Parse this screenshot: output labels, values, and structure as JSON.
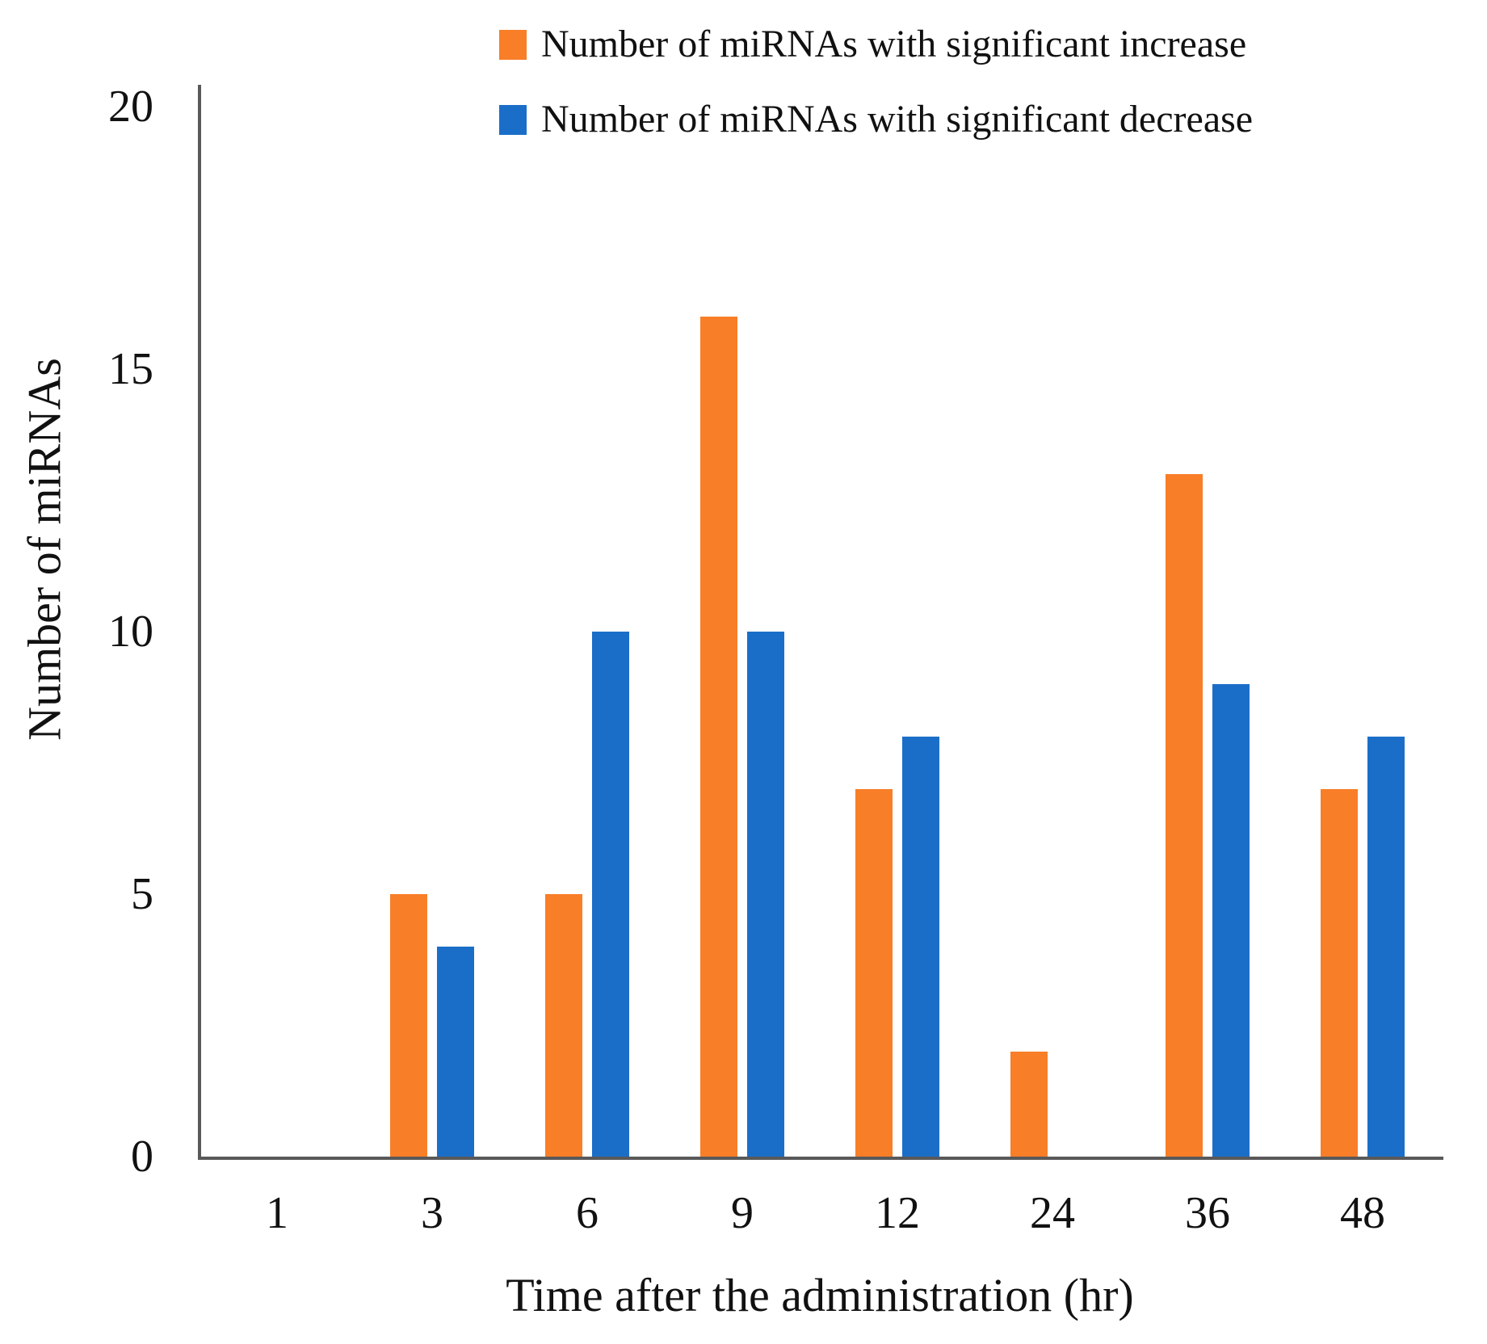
{
  "chart_data": {
    "type": "bar",
    "categories": [
      "1",
      "3",
      "6",
      "9",
      "12",
      "24",
      "36",
      "48"
    ],
    "series": [
      {
        "name": "Number of miRNAs with significant increase",
        "color": "#F87E28",
        "values": [
          0,
          5,
          5,
          16,
          7,
          2,
          13,
          7
        ]
      },
      {
        "name": "Number of miRNAs with significant decrease",
        "color": "#1B6EC8",
        "values": [
          0,
          4,
          10,
          10,
          8,
          0,
          9,
          8
        ]
      }
    ],
    "title": "",
    "xlabel": "Time after the administration (hr)",
    "ylabel": "Number of miRNAs",
    "ylim": [
      0,
      20
    ],
    "yticks": [
      0,
      5,
      10,
      15,
      20
    ],
    "legend_position": "top",
    "grid": false,
    "axis_color": "#595959"
  }
}
